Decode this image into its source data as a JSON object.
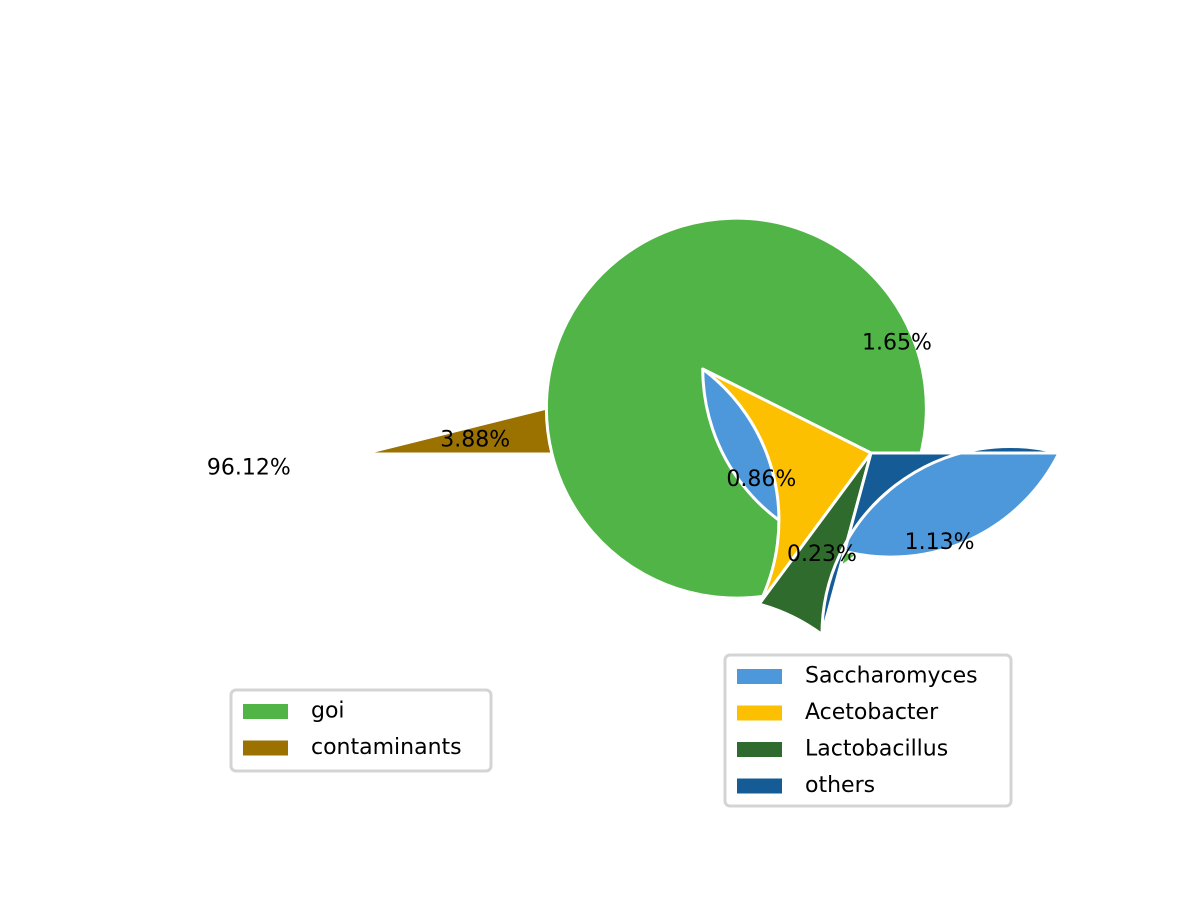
{
  "chart_data": [
    {
      "type": "pie",
      "slices": [
        {
          "label": "goi",
          "value": 96.12,
          "value_label": "96.12%",
          "color": "#50b447"
        },
        {
          "label": "contaminants",
          "value": 3.88,
          "value_label": "3.88%",
          "color": "#9b7200"
        }
      ],
      "legend": {
        "placement": "below",
        "entries": [
          "goi",
          "contaminants"
        ]
      },
      "start_angle_deg": 0,
      "direction": "counterclockwise"
    },
    {
      "type": "pie",
      "slices": [
        {
          "label": "Saccharomyces",
          "value": 1.65,
          "value_label": "1.65%",
          "color": "#4d98da"
        },
        {
          "label": "Acetobacter",
          "value": 0.86,
          "value_label": "0.86%",
          "color": "#fcc000"
        },
        {
          "label": "Lactobacillus",
          "value": 0.23,
          "value_label": "0.23%",
          "color": "#2f6b2d"
        },
        {
          "label": "others",
          "value": 1.13,
          "value_label": "1.13%",
          "color": "#155b95"
        }
      ],
      "legend": {
        "placement": "below",
        "entries": [
          "Saccharomyces",
          "Acetobacter",
          "Lactobacillus",
          "others"
        ]
      },
      "start_angle_deg": 0,
      "direction": "clockwise"
    }
  ]
}
